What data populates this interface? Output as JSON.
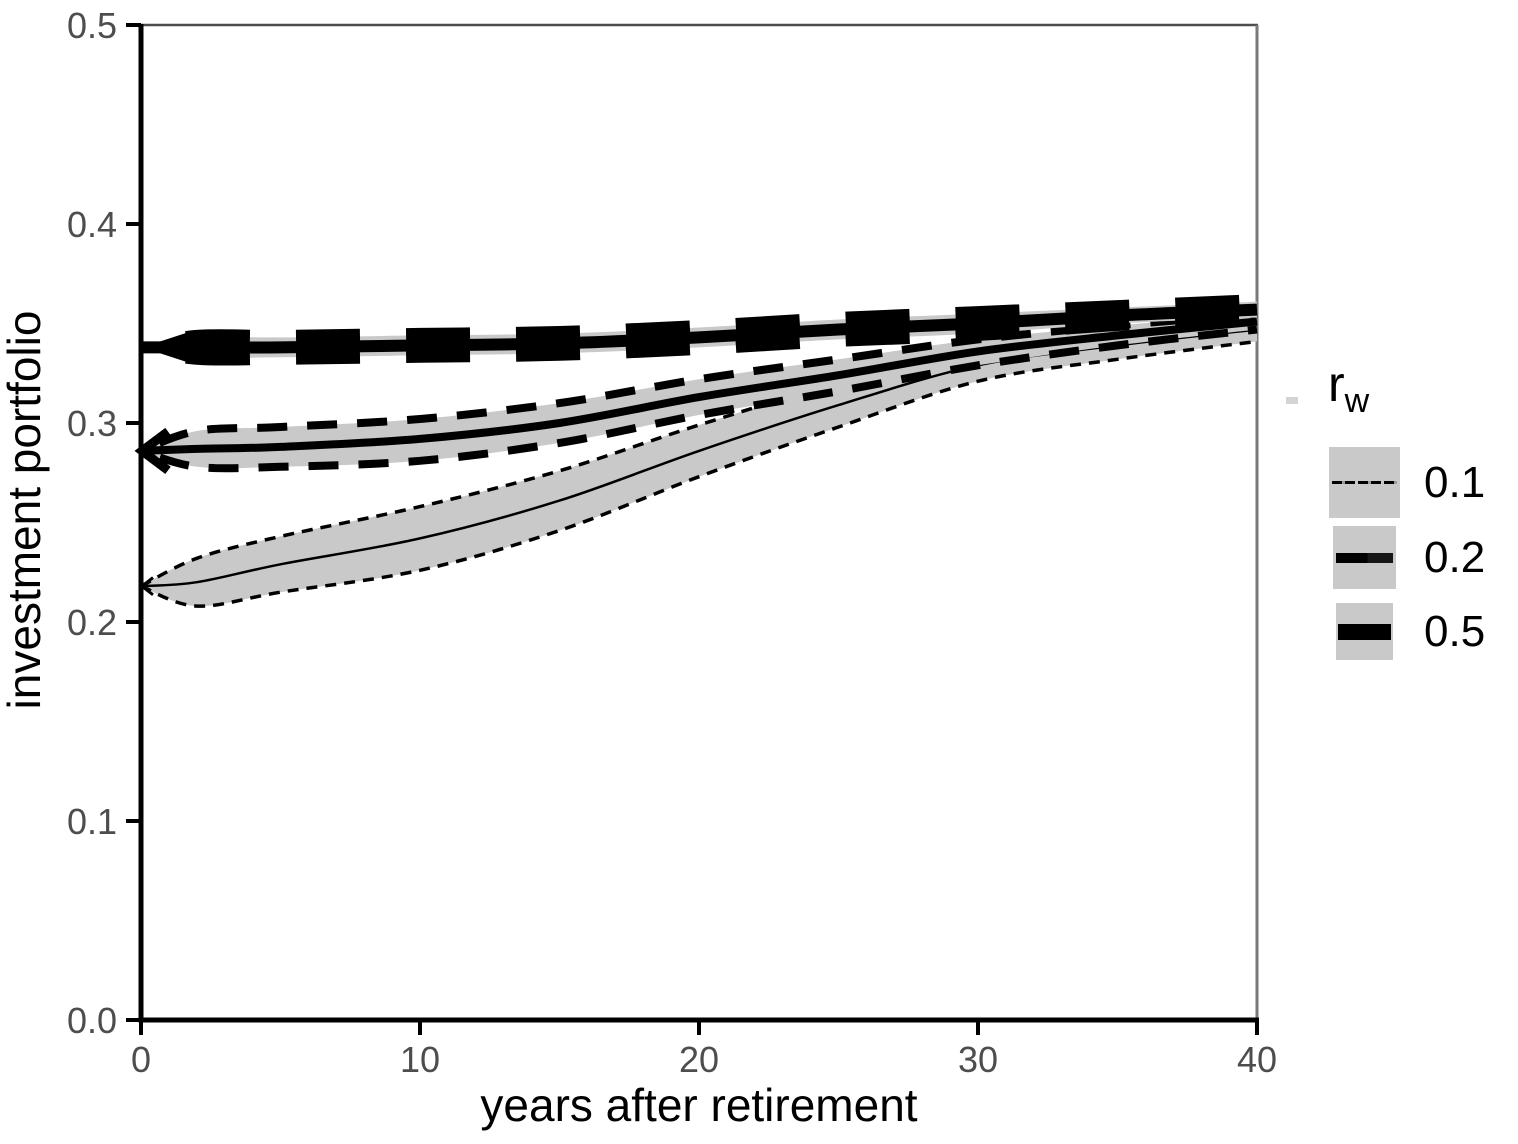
{
  "axes": {
    "x_title": "years after retirement",
    "y_title": "investment portfolio"
  },
  "legend": {
    "title_main": "r",
    "title_sub": "w",
    "entries": [
      {
        "label": "0.1"
      },
      {
        "label": "0.2"
      },
      {
        "label": "0.5"
      }
    ]
  },
  "chart_data": {
    "type": "line",
    "title": "",
    "xlabel": "years after retirement",
    "ylabel": "investment portfolio",
    "xlim": [
      0,
      40
    ],
    "ylim": [
      0.0,
      0.5
    ],
    "xticks": [
      0,
      10,
      20,
      30,
      40
    ],
    "xtick_labels": [
      "0",
      "10",
      "20",
      "30",
      "40"
    ],
    "yticks": [
      0.0,
      0.1,
      0.2,
      0.3,
      0.4,
      0.5
    ],
    "ytick_labels": [
      "0.0",
      "0.1",
      "0.2",
      "0.3",
      "0.4",
      "0.5"
    ],
    "grid": false,
    "legend_position": "right",
    "legend_title": "r_w",
    "colors": {
      "line": "#000000",
      "ribbon": "#c9c9c9",
      "tick_label": "#4d4d4d",
      "axis_line": "#000000",
      "border_top": "#4d4d4d",
      "border_right": "#7a7a7a"
    },
    "x": [
      0,
      2,
      5,
      10,
      15,
      20,
      25,
      30,
      35,
      40
    ],
    "series": [
      {
        "name": "0.1",
        "description": "mean investment portfolio with confidence ribbon, withdrawal rate 0.1",
        "y": [
          0.218,
          0.22,
          0.229,
          0.242,
          0.261,
          0.286,
          0.309,
          0.329,
          0.339,
          0.347
        ],
        "upper": [
          0.218,
          0.232,
          0.243,
          0.258,
          0.276,
          0.299,
          0.32,
          0.337,
          0.346,
          0.353
        ],
        "lower": [
          0.218,
          0.208,
          0.215,
          0.226,
          0.246,
          0.273,
          0.298,
          0.321,
          0.332,
          0.341
        ],
        "style": {
          "line_width": 2.5,
          "boundary_width": 3.5,
          "dash": "11,8",
          "dash_offset": 0,
          "arrow": "chevron",
          "arrow_size": 12,
          "arrow_stroke": 3
        }
      },
      {
        "name": "0.2",
        "description": "mean investment portfolio with confidence ribbon, withdrawal rate 0.2",
        "y": [
          0.286,
          0.287,
          0.288,
          0.292,
          0.3,
          0.313,
          0.324,
          0.336,
          0.344,
          0.351
        ],
        "upper": [
          0.286,
          0.296,
          0.298,
          0.302,
          0.31,
          0.322,
          0.332,
          0.342,
          0.349,
          0.355
        ],
        "lower": [
          0.286,
          0.278,
          0.278,
          0.281,
          0.29,
          0.304,
          0.316,
          0.329,
          0.339,
          0.347
        ],
        "style": {
          "line_width": 8,
          "boundary_width": 8,
          "dash": "30,20",
          "dash_offset": 30,
          "arrow": "chevron",
          "arrow_size": 27,
          "arrow_stroke": 9
        }
      },
      {
        "name": "0.5",
        "description": "mean investment portfolio with confidence ribbon, withdrawal rate 0.5",
        "y": [
          0.338,
          0.338,
          0.338,
          0.339,
          0.34,
          0.343,
          0.347,
          0.35,
          0.354,
          0.357
        ],
        "upper": [
          0.338,
          0.343,
          0.343,
          0.344,
          0.345,
          0.348,
          0.352,
          0.355,
          0.358,
          0.361
        ],
        "lower": [
          0.338,
          0.333,
          0.333,
          0.334,
          0.335,
          0.338,
          0.342,
          0.345,
          0.35,
          0.353
        ],
        "style": {
          "line_width": 12,
          "boundary_width": 15,
          "dash": "64,46",
          "dash_offset": 64,
          "arrow": "triangle",
          "arrow_len": 53,
          "arrow_half": 17
        }
      }
    ]
  }
}
